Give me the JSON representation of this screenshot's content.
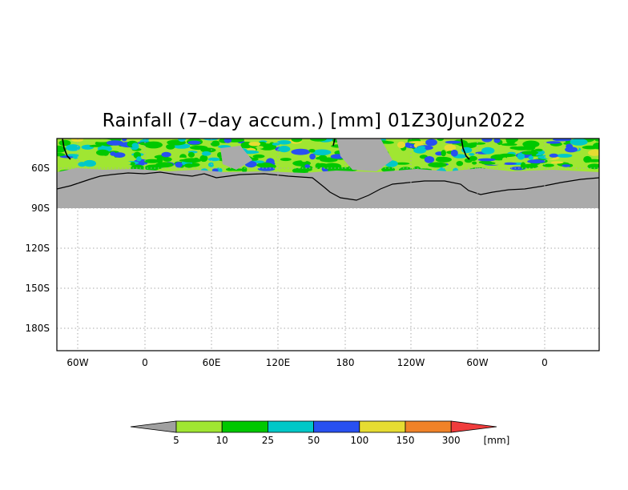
{
  "title": "Rainfall (7–day accum.) [mm] 01Z30Jun2022",
  "map": {
    "lat_labels": [
      "60S",
      "90S",
      "120S",
      "150S",
      "180S"
    ],
    "lon_labels": [
      "60W",
      "0",
      "60E",
      "120E",
      "180",
      "120W",
      "60W",
      "0"
    ],
    "grid": true,
    "land_color": "#aaaaaa",
    "no_data_color": "#ffffff"
  },
  "legend": {
    "levels": [
      "5",
      "10",
      "25",
      "50",
      "100",
      "150",
      "300"
    ],
    "unit": "[mm]",
    "under_color": "#a0a0a0",
    "colors": [
      "#a0e632",
      "#00c800",
      "#00c8c8",
      "#2850f0",
      "#e6dc32",
      "#f08228"
    ],
    "over_color": "#f03c3c"
  }
}
